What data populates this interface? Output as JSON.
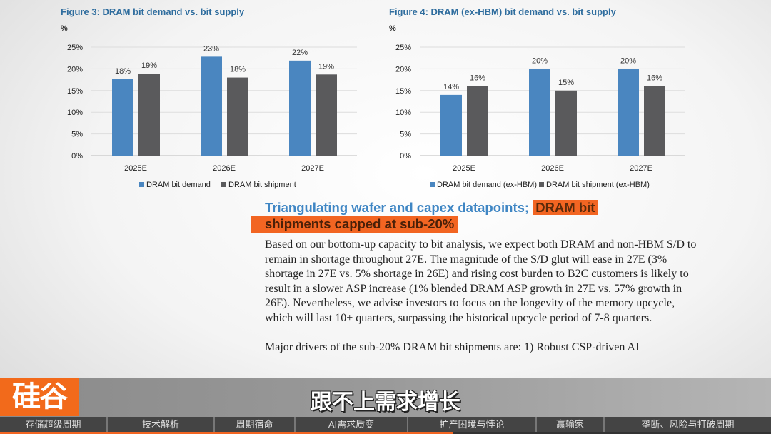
{
  "chart_data": [
    {
      "type": "bar",
      "title": "Figure 3: DRAM bit demand vs. bit supply",
      "ylabel": "%",
      "categories": [
        "2025E",
        "2026E",
        "2027E"
      ],
      "yticks": [
        "0%",
        "5%",
        "10%",
        "15%",
        "20%",
        "25%"
      ],
      "ylim": [
        0,
        25
      ],
      "legend": "bottom",
      "grid": true,
      "series": [
        {
          "name": "DRAM bit demand",
          "color": "#4a86c0",
          "values": [
            17.6,
            22.8,
            21.9
          ],
          "labels": [
            "18%",
            "23%",
            "22%"
          ]
        },
        {
          "name": "DRAM bit shipment",
          "color": "#5a5a5c",
          "values": [
            18.9,
            18.0,
            18.7
          ],
          "labels": [
            "19%",
            "18%",
            "19%"
          ]
        }
      ]
    },
    {
      "type": "bar",
      "title": "Figure 4: DRAM (ex-HBM) bit demand vs. bit supply",
      "ylabel": "%",
      "categories": [
        "2025E",
        "2026E",
        "2027E"
      ],
      "yticks": [
        "0%",
        "5%",
        "10%",
        "15%",
        "20%",
        "25%"
      ],
      "ylim": [
        0,
        25
      ],
      "legend": "bottom",
      "grid": true,
      "series": [
        {
          "name": "DRAM bit demand (ex-HBM)",
          "color": "#4a86c0",
          "values": [
            14,
            20,
            20
          ],
          "labels": [
            "14%",
            "20%",
            "20%"
          ]
        },
        {
          "name": "DRAM bit shipment (ex-HBM)",
          "color": "#5a5a5c",
          "values": [
            16,
            15,
            16
          ],
          "labels": [
            "16%",
            "15%",
            "16%"
          ]
        }
      ]
    }
  ],
  "article": {
    "heading_a": "Triangulating wafer and capex datapoints; ",
    "heading_b": "DRAM bit",
    "heading_c": "shipments capped at sub-20%",
    "paragraph1": "Based on our bottom-up capacity to bit analysis, we expect both DRAM and non-HBM S/D to remain in shortage throughout 27E. The magnitude of the S/D glut will ease in 27E (3% shortage in 27E vs. 5% shortage in 26E) and rising cost burden to B2C customers is likely to result in a slower ASP increase (1% blended DRAM ASP growth in 27E vs. 57% growth in 26E). Nevertheless, we advise investors to focus on the longevity of the memory upcycle, which will last 10+ quarters, surpassing the historical upcycle period of 7-8 quarters.",
    "paragraph2": "Major drivers of the sub-20% DRAM bit shipments are: 1) Robust CSP-driven AI"
  },
  "video": {
    "logo": "硅谷",
    "subtitle": "跟不上需求增长",
    "chapters": [
      "存储超级周期",
      "技术解析",
      "周期宿命",
      "AI需求质变",
      "扩产困境与悖论",
      "赢输家",
      "垄断、风险与打破周期"
    ],
    "progress_percent": 58.7,
    "accent": "#f26522"
  }
}
